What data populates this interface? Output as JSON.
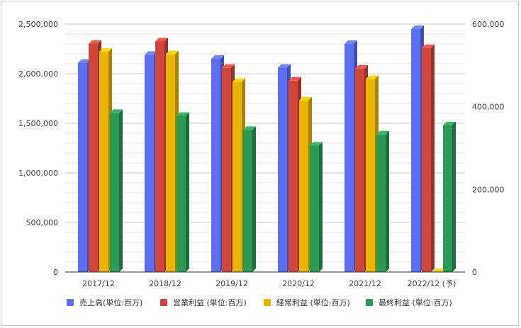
{
  "chart_data": {
    "type": "bar",
    "categories": [
      "2017/12",
      "2018/12",
      "2019/12",
      "2020/12",
      "2021/12",
      "2022/12 (予)"
    ],
    "series": [
      {
        "name": "売上高(単位:百万)",
        "axis": "left",
        "color": "#5b6ff0",
        "values": [
          2110000,
          2190000,
          2150000,
          2060000,
          2300000,
          2450000
        ]
      },
      {
        "name": "営業利益 (単位:百万)",
        "axis": "right",
        "color": "#d1463b",
        "values": [
          552000,
          558000,
          494000,
          463000,
          492000,
          542000
        ]
      },
      {
        "name": "経常利益 (単位:百万)",
        "axis": "right",
        "color": "#e9b400",
        "values": [
          533000,
          527000,
          460000,
          415000,
          467000,
          0
        ]
      },
      {
        "name": "最終利益 (単位:百万)",
        "axis": "right",
        "color": "#2b9a55",
        "values": [
          385000,
          378000,
          344000,
          306000,
          333000,
          355000
        ]
      }
    ],
    "y_left": {
      "min": 0,
      "max": 2500000,
      "ticks": [
        "0",
        "500,000",
        "1,000,000",
        "1,500,000",
        "2,000,000",
        "2,500,000"
      ]
    },
    "y_right": {
      "min": 0,
      "max": 600000,
      "ticks": [
        "0",
        "200,000",
        "400,000",
        "600,000"
      ]
    },
    "grid": true,
    "bar_style": "3d",
    "legend_position": "bottom"
  }
}
